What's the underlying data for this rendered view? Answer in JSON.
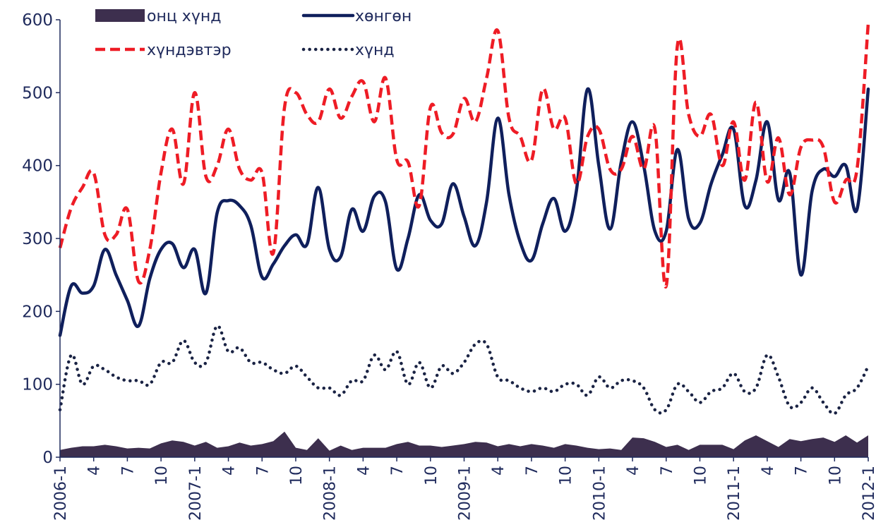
{
  "chart_data": {
    "type": "line",
    "title": "",
    "xlabel": "",
    "ylabel": "",
    "ylim": [
      0,
      600
    ],
    "yticks": [
      0,
      100,
      200,
      300,
      400,
      500,
      600
    ],
    "grid": false,
    "legend_position": "top",
    "x_tick_labels": [
      "2006-1",
      "4",
      "7",
      "10",
      "2007-1",
      "4",
      "7",
      "10",
      "2008-1",
      "4",
      "7",
      "10",
      "2009-1",
      "4",
      "7",
      "10",
      "2010-1",
      "4",
      "7",
      "10",
      "2011-1",
      "4",
      "7",
      "10",
      "2012-1"
    ],
    "series": [
      {
        "name": "онц хүнд",
        "style": "area",
        "color": "#3d2f4e",
        "values": [
          10,
          13,
          15,
          15,
          17,
          15,
          12,
          13,
          12,
          19,
          23,
          21,
          16,
          21,
          13,
          15,
          20,
          16,
          18,
          22,
          35,
          13,
          10,
          26,
          9,
          16,
          10,
          13,
          13,
          13,
          18,
          21,
          16,
          16,
          14,
          16,
          18,
          21,
          20,
          15,
          18,
          15,
          18,
          16,
          13,
          18,
          16,
          13,
          11,
          12,
          10,
          27,
          26,
          21,
          14,
          17,
          10,
          17,
          17,
          17,
          11,
          23,
          30,
          22,
          14,
          25,
          22,
          25,
          27,
          21,
          30,
          20,
          30
        ]
      },
      {
        "name": "хөнгөн",
        "style": "solid",
        "color": "#0f1f5c",
        "values": [
          167,
          235,
          225,
          235,
          285,
          250,
          215,
          180,
          245,
          285,
          293,
          260,
          285,
          225,
          335,
          352,
          345,
          318,
          247,
          265,
          290,
          305,
          292,
          370,
          285,
          275,
          340,
          310,
          358,
          350,
          258,
          300,
          360,
          325,
          320,
          375,
          330,
          290,
          350,
          465,
          360,
          295,
          270,
          320,
          355,
          310,
          365,
          505,
          400,
          313,
          405,
          460,
          400,
          310,
          310,
          422,
          327,
          321,
          375,
          415,
          450,
          345,
          380,
          460,
          353,
          390,
          250,
          365,
          395,
          385,
          400,
          340,
          505
        ]
      },
      {
        "name": "хүндэвтэр",
        "style": "dashed",
        "color": "#ee1c25",
        "values": [
          287,
          342,
          370,
          390,
          305,
          305,
          340,
          241,
          285,
          390,
          450,
          375,
          500,
          385,
          400,
          450,
          395,
          380,
          390,
          280,
          480,
          500,
          470,
          460,
          505,
          465,
          495,
          515,
          460,
          520,
          408,
          405,
          345,
          480,
          445,
          443,
          492,
          460,
          520,
          585,
          465,
          440,
          407,
          505,
          450,
          465,
          375,
          440,
          450,
          395,
          395,
          440,
          395,
          450,
          235,
          565,
          470,
          440,
          470,
          400,
          460,
          380,
          487,
          378,
          438,
          360,
          425,
          435,
          425,
          350,
          380,
          395,
          595
        ]
      },
      {
        "name": "хүнд",
        "style": "dotted",
        "color": "#1a2344",
        "values": [
          65,
          140,
          100,
          125,
          120,
          110,
          105,
          105,
          100,
          130,
          130,
          160,
          130,
          130,
          180,
          145,
          150,
          130,
          130,
          120,
          115,
          125,
          110,
          95,
          95,
          85,
          105,
          105,
          140,
          120,
          145,
          100,
          130,
          95,
          125,
          115,
          130,
          155,
          155,
          110,
          105,
          95,
          90,
          95,
          90,
          100,
          100,
          85,
          110,
          95,
          105,
          105,
          95,
          65,
          65,
          100,
          90,
          75,
          90,
          95,
          115,
          90,
          95,
          140,
          110,
          70,
          75,
          95,
          75,
          60,
          85,
          95,
          125
        ]
      }
    ]
  }
}
